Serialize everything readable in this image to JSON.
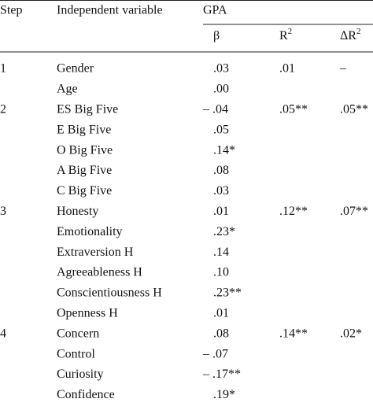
{
  "table": {
    "header": {
      "step": "Step",
      "variable": "Independent variable",
      "group": "GPA",
      "columns": [
        {
          "base": "β"
        },
        {
          "base": "R",
          "sup": "2"
        },
        {
          "base": "ΔR",
          "sup": "2"
        }
      ]
    },
    "rows": [
      [
        "1",
        "Gender",
        ".03",
        ".01",
        "–"
      ],
      [
        null,
        "Age",
        ".00",
        null,
        null
      ],
      [
        "2",
        "ES Big Five",
        "– .04",
        ".05**",
        ".05**"
      ],
      [
        null,
        "E Big Five",
        ".05",
        null,
        null
      ],
      [
        null,
        "O Big Five",
        ".14*",
        null,
        null
      ],
      [
        null,
        "A Big Five",
        ".08",
        null,
        null
      ],
      [
        null,
        "C Big Five",
        ".03",
        null,
        null
      ],
      [
        "3",
        "Honesty",
        ".01",
        ".12**",
        ".07**"
      ],
      [
        null,
        "Emotionality",
        ".23*",
        null,
        null
      ],
      [
        null,
        "Extraversion H",
        ".14",
        null,
        null
      ],
      [
        null,
        "Agreeableness H",
        ".10",
        null,
        null
      ],
      [
        null,
        "Conscientiousness H",
        ".23**",
        null,
        null
      ],
      [
        null,
        "Openness H",
        ".01",
        null,
        null
      ],
      [
        "4",
        "Concern",
        ".08",
        ".14**",
        ".02*"
      ],
      [
        null,
        "Control",
        "– .07",
        null,
        null
      ],
      [
        null,
        "Curiosity",
        "– .17**",
        null,
        null
      ],
      [
        null,
        "Confidence",
        ".19*",
        null,
        null
      ]
    ]
  }
}
